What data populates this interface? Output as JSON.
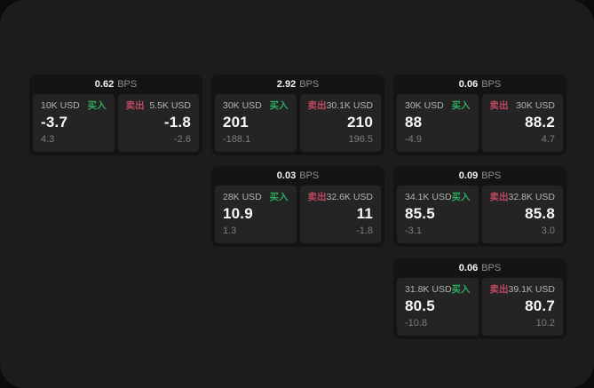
{
  "colors": {
    "outer_bg": "#0b0b0b",
    "surface_bg": "#1c1c1c",
    "card_bg": "#141414",
    "panel_bg": "#242424",
    "buy_green": "#2fa95c",
    "sell_red": "#bf4860"
  },
  "cards": [
    {
      "bps_value": "0.62",
      "bps_unit": "BPS",
      "buy": {
        "amount": "10K USD",
        "label": "买入",
        "value": "-3.7",
        "sub": "4.3"
      },
      "sell": {
        "label": "卖出",
        "amount": "5.5K USD",
        "value": "-1.8",
        "sub": "-2.6"
      }
    },
    {
      "bps_value": "2.92",
      "bps_unit": "BPS",
      "buy": {
        "amount": "30K USD",
        "label": "买入",
        "value": "201",
        "sub": "-188.1"
      },
      "sell": {
        "label": "卖出",
        "amount": "30.1K USD",
        "value": "210",
        "sub": "196.5"
      }
    },
    {
      "bps_value": "0.06",
      "bps_unit": "BPS",
      "buy": {
        "amount": "30K USD",
        "label": "买入",
        "value": "88",
        "sub": "-4.9"
      },
      "sell": {
        "label": "卖出",
        "amount": "30K USD",
        "value": "88.2",
        "sub": "4.7"
      }
    },
    {
      "bps_value": "0.03",
      "bps_unit": "BPS",
      "buy": {
        "amount": "28K USD",
        "label": "买入",
        "value": "10.9",
        "sub": "1.3"
      },
      "sell": {
        "label": "卖出",
        "amount": "32.6K USD",
        "value": "11",
        "sub": "-1.8"
      }
    },
    {
      "bps_value": "0.09",
      "bps_unit": "BPS",
      "buy": {
        "amount": "34.1K USD",
        "label": "买入",
        "value": "85.5",
        "sub": "-3.1"
      },
      "sell": {
        "label": "卖出",
        "amount": "32.8K USD",
        "value": "85.8",
        "sub": "3.0"
      }
    },
    {
      "bps_value": "0.06",
      "bps_unit": "BPS",
      "buy": {
        "amount": "31.8K USD",
        "label": "买入",
        "value": "80.5",
        "sub": "-10.8"
      },
      "sell": {
        "label": "卖出",
        "amount": "39.1K USD",
        "value": "80.7",
        "sub": "10.2"
      }
    }
  ]
}
